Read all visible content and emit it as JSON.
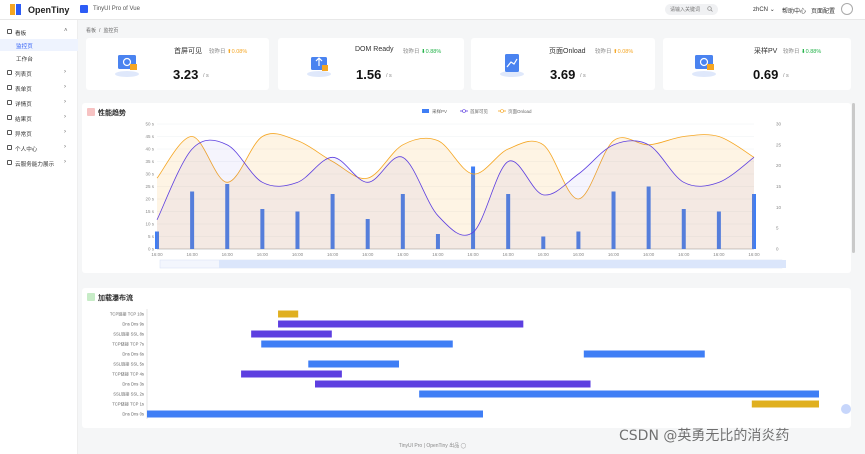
{
  "header": {
    "brand": "OpenTiny",
    "product": "TinyUI Pro of Vue",
    "search_placeholder": "请输入关键词",
    "lang": "zhCN",
    "help": "帮助中心",
    "config": "页面配置"
  },
  "sidebar": {
    "items": [
      {
        "label": "看板",
        "expanded": true
      },
      {
        "label": "监控页",
        "sub": true,
        "active": true
      },
      {
        "label": "工作台",
        "sub": true
      },
      {
        "label": "列表页"
      },
      {
        "label": "表单页"
      },
      {
        "label": "详情页"
      },
      {
        "label": "结果页"
      },
      {
        "label": "异常页"
      },
      {
        "label": "个人中心"
      },
      {
        "label": "云服务能力展示"
      }
    ]
  },
  "breadcrumb": [
    "看板",
    "/",
    "监控页"
  ],
  "stats": [
    {
      "title": "首屏可见",
      "compare_label": "较昨日",
      "change": "0.08%",
      "trend": "up",
      "value": "3.23",
      "unit": "/ s",
      "icon": "monitor-refresh-icon"
    },
    {
      "title": "DOM Ready",
      "compare_label": "较昨日",
      "change": "0.88%",
      "trend": "down",
      "value": "1.56",
      "unit": "/ s",
      "icon": "upload-box-icon"
    },
    {
      "title": "页面Onload",
      "compare_label": "较昨日",
      "change": "0.08%",
      "trend": "up",
      "value": "3.69",
      "unit": "/ s",
      "icon": "trend-doc-icon"
    },
    {
      "title": "采样PV",
      "compare_label": "较昨日",
      "change": "0.88%",
      "trend": "down",
      "value": "0.69",
      "unit": "/ s",
      "icon": "monitor-refresh-icon"
    }
  ],
  "perf_panel": {
    "title": "性能趋势"
  },
  "waterfall_panel": {
    "title": "加载瀑布流"
  },
  "colors": {
    "bar": "#3f7ef5",
    "purple": "#5d3fe0",
    "orange": "#f5a623",
    "gold": "#e0b020",
    "accent": "#2d5cf6"
  },
  "chart_data": [
    {
      "type": "bar",
      "title": "",
      "legend": [
        "采样PV",
        "首屏可见",
        "页面Onload"
      ],
      "legend_position": "top-center",
      "categories": [
        "16:00",
        "16:00",
        "16:00",
        "16:00",
        "16:00",
        "16:00",
        "16:00",
        "16:00",
        "16:00",
        "16:00",
        "16:00",
        "16:00",
        "16:00",
        "16:00",
        "16:00",
        "16:00",
        "16:00",
        "16:00"
      ],
      "y_left": {
        "ticks": [
          "0 s",
          "5 s",
          "10 s",
          "15 s",
          "20 s",
          "25 s",
          "30 s",
          "35 s",
          "40 s",
          "45 s",
          "50 s"
        ],
        "ylim": [
          0,
          50
        ]
      },
      "y_right": {
        "ticks": [
          "0",
          "5",
          "10",
          "15",
          "20",
          "25",
          "30"
        ],
        "ylim": [
          0,
          30
        ]
      },
      "series": [
        {
          "name": "采样PV",
          "type": "bar",
          "axis": "left",
          "values": [
            7,
            23,
            26,
            16,
            15,
            22,
            12,
            22,
            6,
            33,
            22,
            5,
            7,
            23,
            25,
            16,
            15,
            22
          ]
        },
        {
          "name": "首屏可见",
          "type": "line",
          "axis": "right",
          "values": [
            7,
            24,
            25,
            16,
            16,
            22,
            16,
            22,
            8,
            4,
            21,
            13,
            18,
            25,
            25,
            16,
            16,
            22
          ]
        },
        {
          "name": "页面Onload",
          "type": "line",
          "axis": "right",
          "values": [
            17,
            27,
            16,
            27,
            26,
            21,
            17,
            25,
            26,
            18,
            24,
            25,
            12,
            26,
            25,
            27,
            27,
            22
          ]
        }
      ],
      "grid": true
    },
    {
      "type": "gantt",
      "title": "",
      "categories": [
        "TCP链接 TCP 10s",
        "Dns Dns 9s",
        "SSL链接 SSL 8s",
        "TCP链接 TCP 7s",
        "Dns Dns 6s",
        "SSL链接 SSL 5s",
        "TCP链接 TCP 4s",
        "Dns Dns 3s",
        "SSL链接 SSL 2s",
        "TCP链接 TCP 1s",
        "Dns Dns 0s"
      ],
      "xlim": [
        0,
        100
      ],
      "series": [
        {
          "start": 19.5,
          "end": 22.5,
          "color": "gold"
        },
        {
          "start": 19.5,
          "end": 56,
          "color": "purple"
        },
        {
          "start": 15.5,
          "end": 27.5,
          "color": "purple"
        },
        {
          "start": 17,
          "end": 45.5,
          "color": "bar"
        },
        {
          "start": 65,
          "end": 83,
          "color": "bar"
        },
        {
          "start": 24,
          "end": 37.5,
          "color": "bar"
        },
        {
          "start": 14,
          "end": 29,
          "color": "purple"
        },
        {
          "start": 25,
          "end": 66,
          "color": "purple"
        },
        {
          "start": 40.5,
          "end": 100,
          "color": "bar"
        },
        {
          "start": 90,
          "end": 100,
          "color": "gold"
        },
        {
          "start": 0,
          "end": 50,
          "color": "bar"
        }
      ]
    }
  ],
  "footer": {
    "left": "TinyUI Pro",
    "sep": "|",
    "right": "OpenTiny 出品"
  },
  "watermark": "CSDN @英勇无比的消炎药"
}
